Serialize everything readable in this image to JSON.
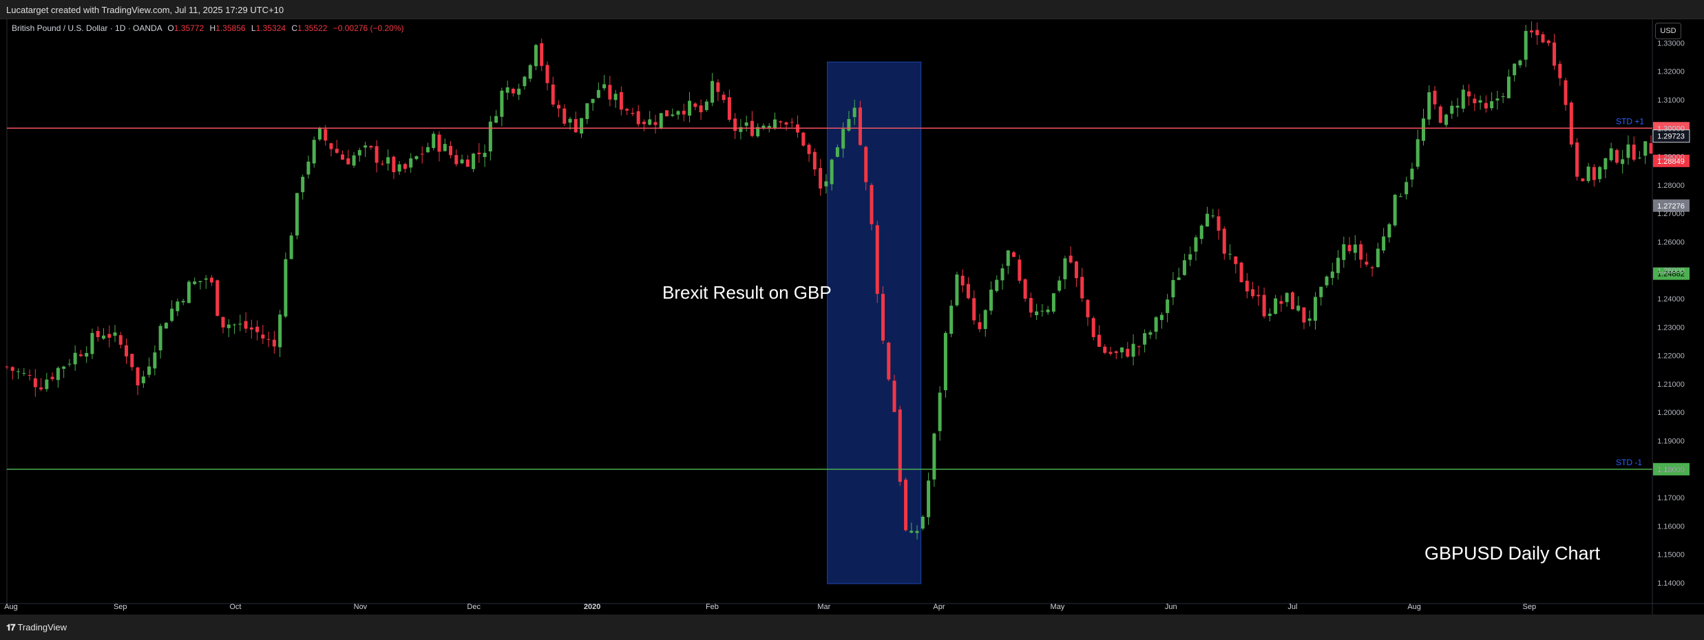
{
  "header": {
    "title": "Lucatarget created with TradingView.com, Jul 11, 2025 17:29 UTC+10"
  },
  "legend": {
    "symbol": "British Pound / U.S. Dollar · 1D · OANDA",
    "open_label": "O",
    "open": "1.35772",
    "high_label": "H",
    "high": "1.35856",
    "low_label": "L",
    "low": "1.35324",
    "close_label": "C",
    "close": "1.35522",
    "change": "−0.00276 (−0.20%)"
  },
  "currency_button": "USD",
  "footer": {
    "brand": "TradingView",
    "brand_icon": "tradingview-logo-icon"
  },
  "annotations": {
    "brexit_text": "Brexit Result on GBP",
    "chart_caption": "GBPUSD Daily Chart",
    "std_plus_label": "STD +1",
    "std_minus_label": "STD -1"
  },
  "colors": {
    "up": "#4caf50",
    "down": "#f23645",
    "resistance_line": "#f7525f",
    "support_line": "#4caf50",
    "highlight_fill": "#0d2461",
    "highlight_border": "#2962ff",
    "std_label": "#2962ff",
    "background": "#000000"
  },
  "chart_data": {
    "type": "candlestick",
    "ylim": [
      1.135,
      1.339
    ],
    "y_ticks": [
      "1.14000",
      "1.15000",
      "1.16000",
      "1.17000",
      "1.18000",
      "1.19000",
      "1.20000",
      "1.21000",
      "1.22000",
      "1.23000",
      "1.24000",
      "1.25000",
      "1.26000",
      "1.27000",
      "1.28000",
      "1.29000",
      "1.30000",
      "1.31000",
      "1.32000",
      "1.33000"
    ],
    "x_ticks": [
      {
        "label": "Aug",
        "t": 0
      },
      {
        "label": "Sep",
        "t": 0.069
      },
      {
        "label": "Oct",
        "t": 0.139
      },
      {
        "label": "Nov",
        "t": 0.215
      },
      {
        "label": "Dec",
        "t": 0.284
      },
      {
        "label": "2020",
        "t": 0.356
      },
      {
        "label": "Feb",
        "t": 0.429
      },
      {
        "label": "Mar",
        "t": 0.497
      },
      {
        "label": "Apr",
        "t": 0.567
      },
      {
        "label": "May",
        "t": 0.639
      },
      {
        "label": "Jun",
        "t": 0.708
      },
      {
        "label": "Jul",
        "t": 0.782
      },
      {
        "label": "Aug",
        "t": 0.856
      },
      {
        "label": "Sep",
        "t": 0.926
      }
    ],
    "x_ticks_bold": [
      "2020"
    ],
    "price_path": [
      [
        0,
        1.216
      ],
      [
        0.02,
        1.21
      ],
      [
        0.045,
        1.222
      ],
      [
        0.06,
        1.229
      ],
      [
        0.075,
        1.22
      ],
      [
        0.08,
        1.208
      ],
      [
        0.095,
        1.232
      ],
      [
        0.11,
        1.244
      ],
      [
        0.123,
        1.248
      ],
      [
        0.13,
        1.232
      ],
      [
        0.15,
        1.229
      ],
      [
        0.163,
        1.223
      ],
      [
        0.17,
        1.255
      ],
      [
        0.18,
        1.285
      ],
      [
        0.19,
        1.298
      ],
      [
        0.205,
        1.289
      ],
      [
        0.22,
        1.292
      ],
      [
        0.24,
        1.284
      ],
      [
        0.26,
        1.296
      ],
      [
        0.275,
        1.288
      ],
      [
        0.29,
        1.292
      ],
      [
        0.3,
        1.312
      ],
      [
        0.315,
        1.318
      ],
      [
        0.322,
        1.332
      ],
      [
        0.33,
        1.31
      ],
      [
        0.345,
        1.3
      ],
      [
        0.36,
        1.314
      ],
      [
        0.375,
        1.308
      ],
      [
        0.39,
        1.302
      ],
      [
        0.41,
        1.308
      ],
      [
        0.425,
        1.305
      ],
      [
        0.43,
        1.318
      ],
      [
        0.44,
        1.3
      ],
      [
        0.455,
        1.3
      ],
      [
        0.47,
        1.305
      ],
      [
        0.485,
        1.295
      ],
      [
        0.495,
        1.278
      ],
      [
        0.505,
        1.29
      ],
      [
        0.515,
        1.312
      ],
      [
        0.52,
        1.29
      ],
      [
        0.526,
        1.265
      ],
      [
        0.532,
        1.228
      ],
      [
        0.54,
        1.2
      ],
      [
        0.546,
        1.158
      ],
      [
        0.551,
        1.155
      ],
      [
        0.558,
        1.165
      ],
      [
        0.565,
        1.195
      ],
      [
        0.573,
        1.238
      ],
      [
        0.58,
        1.25
      ],
      [
        0.59,
        1.226
      ],
      [
        0.6,
        1.243
      ],
      [
        0.61,
        1.257
      ],
      [
        0.62,
        1.236
      ],
      [
        0.635,
        1.238
      ],
      [
        0.645,
        1.257
      ],
      [
        0.655,
        1.237
      ],
      [
        0.665,
        1.222
      ],
      [
        0.675,
        1.22
      ],
      [
        0.69,
        1.224
      ],
      [
        0.7,
        1.232
      ],
      [
        0.715,
        1.252
      ],
      [
        0.73,
        1.273
      ],
      [
        0.74,
        1.256
      ],
      [
        0.75,
        1.248
      ],
      [
        0.765,
        1.236
      ],
      [
        0.78,
        1.24
      ],
      [
        0.79,
        1.232
      ],
      [
        0.8,
        1.242
      ],
      [
        0.815,
        1.26
      ],
      [
        0.83,
        1.25
      ],
      [
        0.84,
        1.268
      ],
      [
        0.855,
        1.288
      ],
      [
        0.865,
        1.31
      ],
      [
        0.875,
        1.302
      ],
      [
        0.885,
        1.313
      ],
      [
        0.9,
        1.305
      ],
      [
        0.915,
        1.318
      ],
      [
        0.925,
        1.333
      ],
      [
        0.935,
        1.332
      ],
      [
        0.945,
        1.32
      ],
      [
        0.95,
        1.3
      ],
      [
        0.955,
        1.285
      ],
      [
        0.965,
        1.283
      ],
      [
        0.975,
        1.29
      ],
      [
        1,
        1.293
      ]
    ],
    "horizontal_lines": [
      {
        "price": 1.3,
        "label": "1.30000",
        "role": "resistance",
        "series_label": "STD +1"
      },
      {
        "price": 1.18,
        "label": "1.18000",
        "role": "support",
        "series_label": "STD -1"
      }
    ],
    "price_badges": [
      {
        "price": 1.29723,
        "label": "1.29723",
        "style": "dark"
      },
      {
        "price": 1.28849,
        "label": "1.28849",
        "style": "red"
      },
      {
        "price": 1.27276,
        "label": "1.27276",
        "style": "gray"
      },
      {
        "price": 1.24882,
        "label": "1.24882",
        "style": "green"
      }
    ],
    "highlight_region": {
      "t_start": 0.499,
      "t_end": 0.556,
      "price_top": 1.3233,
      "price_bottom": 1.1397
    },
    "grid": false
  }
}
